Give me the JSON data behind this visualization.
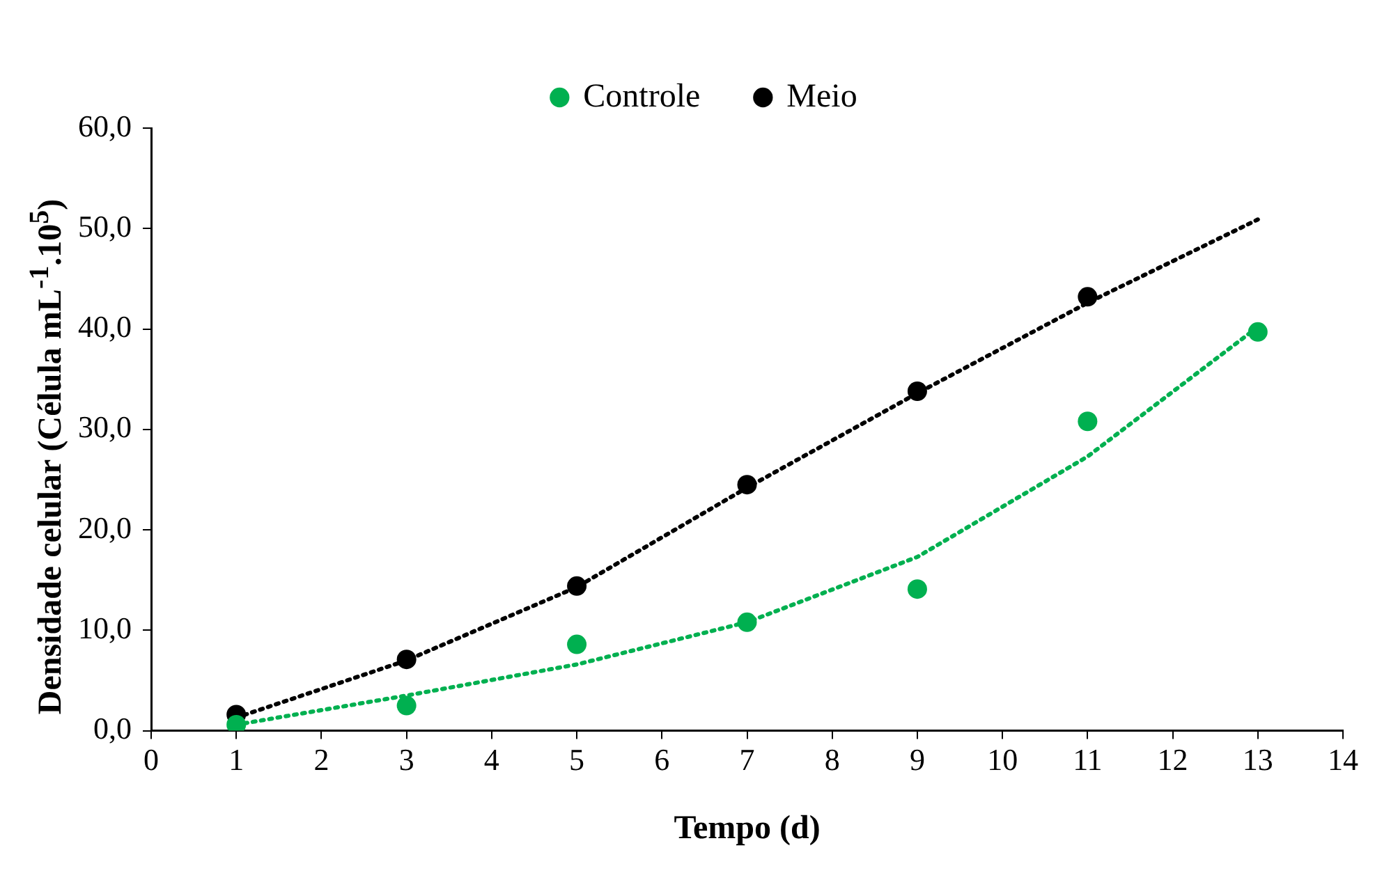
{
  "chart_data": {
    "type": "scatter",
    "xlabel": "Tempo (d)",
    "ylabel": "Densidade celular (Célula mL$^{-1}$.10$^{5}$)",
    "x": [
      1,
      3,
      5,
      7,
      9,
      11,
      13
    ],
    "series": [
      {
        "name": "Controle",
        "color": "#00b050",
        "values": [
          0.6,
          2.5,
          8.6,
          10.8,
          14.1,
          30.8,
          39.7
        ]
      },
      {
        "name": "Meio",
        "color": "#000000",
        "x": [
          1,
          3,
          5,
          7,
          9,
          11
        ],
        "values": [
          1.6,
          7.1,
          14.4,
          24.5,
          33.8,
          43.2
        ]
      },
      {
        "type": "line",
        "color": "#00b050",
        "line_style": "dotted",
        "marker": "none",
        "x": [
          1,
          3,
          5,
          7,
          9,
          11,
          13
        ],
        "values": [
          0.6,
          3.5,
          6.6,
          10.8,
          17.3,
          27.3,
          40.2
        ]
      },
      {
        "type": "line",
        "color": "#000000",
        "line_style": "dotted",
        "marker": "none",
        "x": [
          1,
          3,
          5,
          7,
          9,
          11,
          13
        ],
        "values": [
          1.3,
          7.0,
          14.3,
          24.2,
          33.6,
          42.6,
          50.9
        ]
      }
    ],
    "marker": "circle",
    "legend": "top",
    "grid": false,
    "xlim": [
      0,
      14
    ],
    "xticks": [
      0,
      1,
      2,
      3,
      4,
      5,
      6,
      7,
      8,
      9,
      10,
      11,
      12,
      13,
      14
    ],
    "ylim": [
      0,
      60
    ],
    "yticks": [
      {
        "value": 0,
        "label": "0,0"
      },
      {
        "value": 10,
        "label": "10,0"
      },
      {
        "value": 20,
        "label": "20,0"
      },
      {
        "value": 30,
        "label": "30,0"
      },
      {
        "value": 40,
        "label": "40,0"
      },
      {
        "value": 50,
        "label": "50,0"
      },
      {
        "value": 60,
        "label": "60,0"
      }
    ]
  }
}
